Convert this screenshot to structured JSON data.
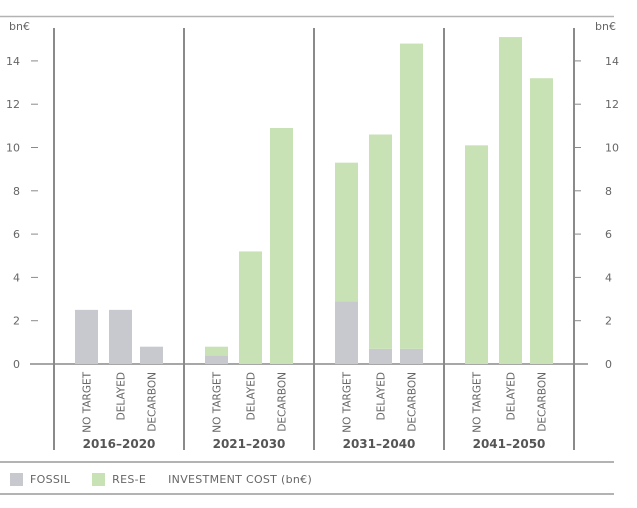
{
  "chart_data": {
    "type": "bar",
    "stacked": true,
    "unit": "bn€",
    "ylim": [
      0,
      15
    ],
    "yticks": [
      0,
      2,
      4,
      6,
      8,
      10,
      12,
      14
    ],
    "groups": [
      {
        "label": "2016–2020",
        "categories": [
          "NO TARGET",
          "DELAYED",
          "DECARBON"
        ],
        "fossil": [
          2.5,
          2.5,
          0.8
        ],
        "res_e": [
          0,
          0,
          0
        ]
      },
      {
        "label": "2021–2030",
        "categories": [
          "NO TARGET",
          "DELAYED",
          "DECARBON"
        ],
        "fossil": [
          0.4,
          0,
          0
        ],
        "res_e": [
          0.4,
          5.2,
          10.9
        ]
      },
      {
        "label": "2031–2040",
        "categories": [
          "NO TARGET",
          "DELAYED",
          "DECARBON"
        ],
        "fossil": [
          2.9,
          0.7,
          0.7
        ],
        "res_e": [
          6.4,
          9.9,
          14.1
        ]
      },
      {
        "label": "2041–2050",
        "categories": [
          "NO TARGET",
          "DELAYED",
          "DECARBON"
        ],
        "fossil": [
          0,
          0,
          0
        ],
        "res_e": [
          10.1,
          15.1,
          13.2
        ]
      }
    ],
    "series": [
      {
        "key": "fossil",
        "name": "FOSSIL",
        "color": "#c8c9ce"
      },
      {
        "key": "res_e",
        "name": "RES-E",
        "color": "#c8e2b6"
      }
    ],
    "legend_note": "INVESTMENT COST (bn€)",
    "legend_position": "bottom",
    "grid": false
  }
}
